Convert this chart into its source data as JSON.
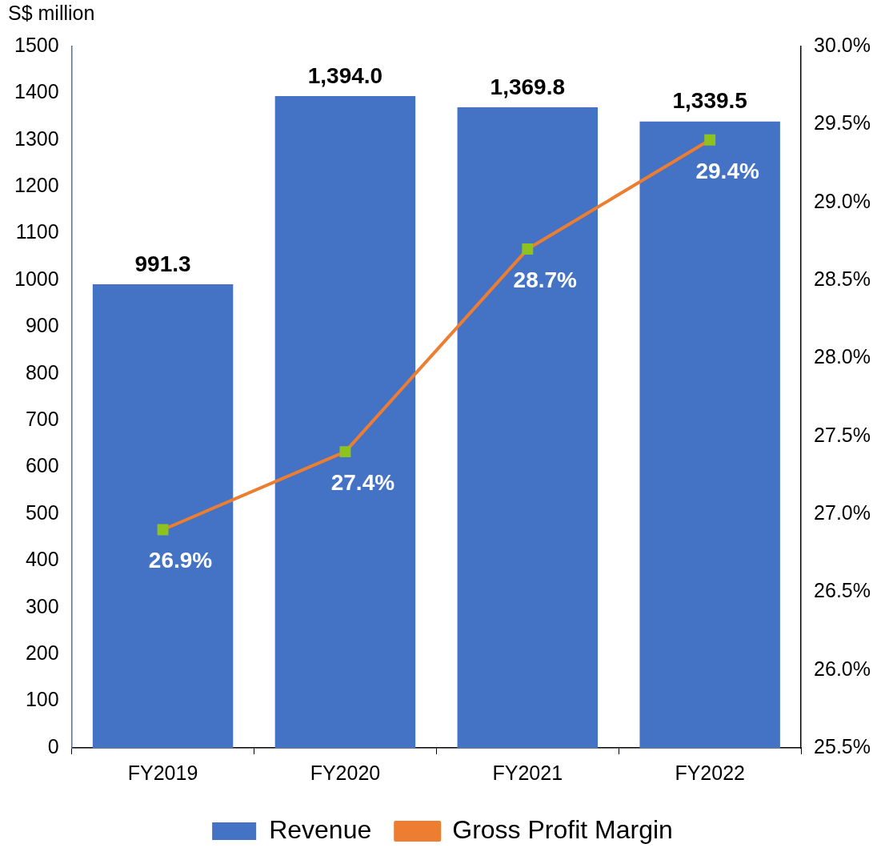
{
  "chart_data": {
    "type": "bar",
    "ylabel": "S$ million",
    "categories": [
      "FY2019",
      "FY2020",
      "FY2021",
      "FY2022"
    ],
    "series": [
      {
        "name": "Revenue",
        "color": "#4472c4",
        "values": [
          991.3,
          1394.0,
          1369.8,
          1339.5
        ],
        "value_labels": [
          "991.3",
          "1,394.0",
          "1,369.8",
          "1,339.5"
        ]
      },
      {
        "name": "Gross Profit Margin",
        "type": "line",
        "axis": "y2",
        "color": "#ed7d31",
        "marker": "square",
        "values": [
          26.9,
          27.4,
          28.7,
          29.4
        ],
        "value_labels": [
          "26.9%",
          "27.4%",
          "28.7%",
          "29.4%"
        ]
      }
    ],
    "ylim": [
      0,
      1500
    ],
    "yticks": [
      0,
      100,
      200,
      300,
      400,
      500,
      600,
      700,
      800,
      900,
      1000,
      1100,
      1200,
      1300,
      1400,
      1500
    ],
    "y2lim": [
      25.5,
      30.0
    ],
    "y2ticks": [
      {
        "value": 25.5,
        "label": "25.5%"
      },
      {
        "value": 26.0,
        "label": "26.0%"
      },
      {
        "value": 26.5,
        "label": "26.5%"
      },
      {
        "value": 27.0,
        "label": "27.0%"
      },
      {
        "value": 27.5,
        "label": "27.5%"
      },
      {
        "value": 28.0,
        "label": "28.0%"
      },
      {
        "value": 28.5,
        "label": "28.5%"
      },
      {
        "value": 29.0,
        "label": "29.0%"
      },
      {
        "value": 29.5,
        "label": "29.5%"
      },
      {
        "value": 30.0,
        "label": "30.0%"
      }
    ],
    "grid": false,
    "legend": "bottom"
  }
}
